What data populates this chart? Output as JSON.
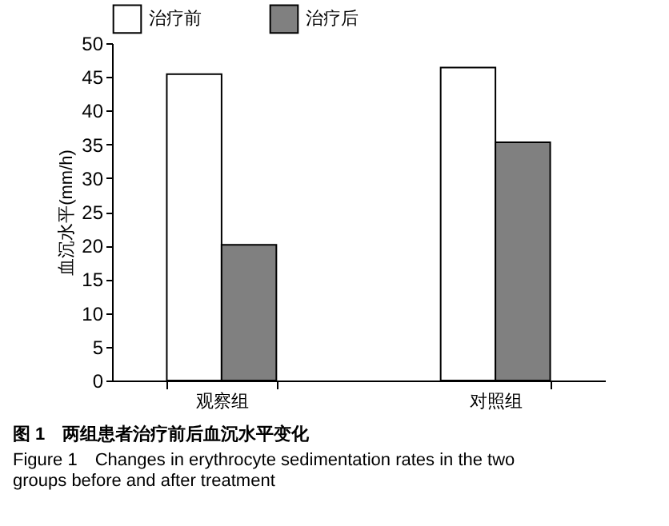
{
  "chart_data": {
    "type": "bar",
    "title": "图 1　两组患者治疗前后血沉水平变化",
    "subtitle": "Figure 1　Changes in erythrocyte sedimentation rates in the two groups before and after treatment",
    "ylabel": "血沉水平(mm/h)",
    "categories": [
      "观察组",
      "对照组"
    ],
    "series": [
      {
        "name": "治疗前",
        "color": "#ffffff",
        "values": [
          45.4,
          46.4
        ]
      },
      {
        "name": "治疗后",
        "color": "#808080",
        "values": [
          20.1,
          35.3
        ]
      }
    ],
    "ylim": [
      0,
      50
    ],
    "yticks": [
      0,
      5,
      10,
      15,
      20,
      25,
      30,
      35,
      40,
      45,
      50
    ],
    "grid": false,
    "legend": "top"
  }
}
